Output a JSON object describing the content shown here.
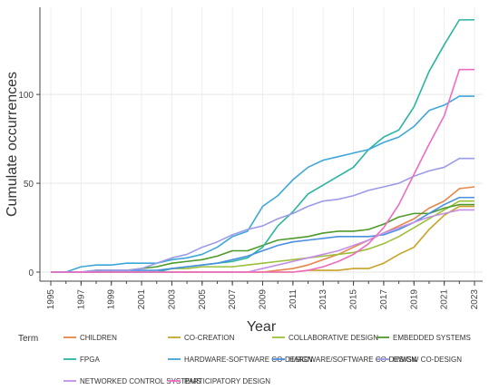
{
  "chart_data": {
    "type": "line",
    "xlabel": "Year",
    "ylabel": "Cumulate occurrences",
    "xlim": [
      1995,
      2023
    ],
    "ylim": [
      0,
      145
    ],
    "x_ticks": [
      1995,
      1997,
      1999,
      2001,
      2003,
      2005,
      2007,
      2009,
      2011,
      2013,
      2015,
      2017,
      2019,
      2021,
      2023
    ],
    "y_ticks": [
      0,
      50,
      100
    ],
    "legend_title": "Term",
    "legend_position": "bottom",
    "x": [
      1995,
      1996,
      1997,
      1998,
      1999,
      2000,
      2001,
      2002,
      2003,
      2004,
      2005,
      2006,
      2007,
      2008,
      2009,
      2010,
      2011,
      2012,
      2013,
      2014,
      2015,
      2016,
      2017,
      2018,
      2019,
      2020,
      2021,
      2022,
      2023
    ],
    "series": [
      {
        "name": "CHILDREN",
        "color": "#e8854a",
        "values": [
          0,
          0,
          0,
          0,
          0,
          0,
          0,
          0,
          0,
          0,
          0,
          0,
          0,
          0,
          0,
          1,
          2,
          4,
          7,
          10,
          14,
          18,
          22,
          26,
          30,
          36,
          40,
          47,
          48
        ]
      },
      {
        "name": "CO-CREATION",
        "color": "#c9a227",
        "values": [
          0,
          0,
          0,
          0,
          0,
          0,
          0,
          0,
          0,
          0,
          0,
          0,
          0,
          0,
          0,
          0,
          0,
          1,
          1,
          1,
          2,
          2,
          5,
          10,
          14,
          24,
          32,
          37,
          37
        ]
      },
      {
        "name": "COLLABORATIVE DESIGN",
        "color": "#9cbf3a",
        "values": [
          0,
          0,
          0,
          0,
          0,
          0,
          0,
          0,
          2,
          2,
          3,
          3,
          3,
          4,
          5,
          6,
          7,
          8,
          9,
          10,
          11,
          13,
          16,
          20,
          25,
          30,
          35,
          40,
          40
        ]
      },
      {
        "name": "EMBEDDED SYSTEMS",
        "color": "#4f9a2a",
        "values": [
          0,
          0,
          0,
          1,
          1,
          1,
          2,
          3,
          5,
          6,
          7,
          9,
          12,
          12,
          15,
          18,
          19,
          20,
          22,
          23,
          23,
          24,
          27,
          31,
          33,
          33,
          36,
          38,
          38
        ]
      },
      {
        "name": "FPGA",
        "color": "#2ab5a0",
        "values": [
          0,
          0,
          0,
          0,
          0,
          0,
          0,
          0,
          2,
          3,
          4,
          5,
          6,
          8,
          14,
          26,
          34,
          44,
          49,
          54,
          59,
          69,
          76,
          80,
          93,
          113,
          128,
          142,
          142
        ]
      },
      {
        "name": "HARDWARE-SOFTWARE CO-DESIGN",
        "color": "#3ea6d8",
        "values": [
          0,
          0,
          3,
          4,
          4,
          5,
          5,
          5,
          7,
          8,
          10,
          14,
          20,
          23,
          37,
          43,
          52,
          59,
          63,
          65,
          67,
          69,
          73,
          76,
          82,
          91,
          94,
          99,
          99
        ]
      },
      {
        "name": "HARDWARE/SOFTWARE CO-DESIGN",
        "color": "#4a8fe0",
        "values": [
          0,
          0,
          0,
          1,
          1,
          1,
          1,
          1,
          2,
          3,
          4,
          5,
          7,
          9,
          12,
          15,
          17,
          18,
          19,
          20,
          20,
          20,
          21,
          24,
          28,
          33,
          38,
          42,
          42
        ]
      },
      {
        "name": "HW/SW CO-DESIGN",
        "color": "#9b9be8",
        "values": [
          0,
          0,
          0,
          1,
          1,
          1,
          2,
          5,
          8,
          10,
          14,
          17,
          21,
          24,
          26,
          30,
          33,
          37,
          40,
          41,
          43,
          46,
          48,
          50,
          54,
          57,
          59,
          64,
          64
        ]
      },
      {
        "name": "NETWORKED CONTROL SYSTEMS",
        "color": "#c48ee6",
        "values": [
          0,
          0,
          0,
          0,
          0,
          0,
          0,
          0,
          0,
          0,
          0,
          0,
          0,
          0,
          2,
          4,
          6,
          8,
          10,
          12,
          15,
          18,
          22,
          25,
          28,
          31,
          33,
          35,
          35
        ]
      },
      {
        "name": "PARTICIPATORY DESIGN",
        "color": "#f06cc0",
        "values": [
          0,
          0,
          0,
          0,
          0,
          0,
          0,
          0,
          0,
          0,
          0,
          0,
          0,
          0,
          0,
          0,
          0,
          1,
          3,
          6,
          10,
          16,
          25,
          38,
          55,
          72,
          88,
          114,
          114
        ]
      }
    ]
  }
}
